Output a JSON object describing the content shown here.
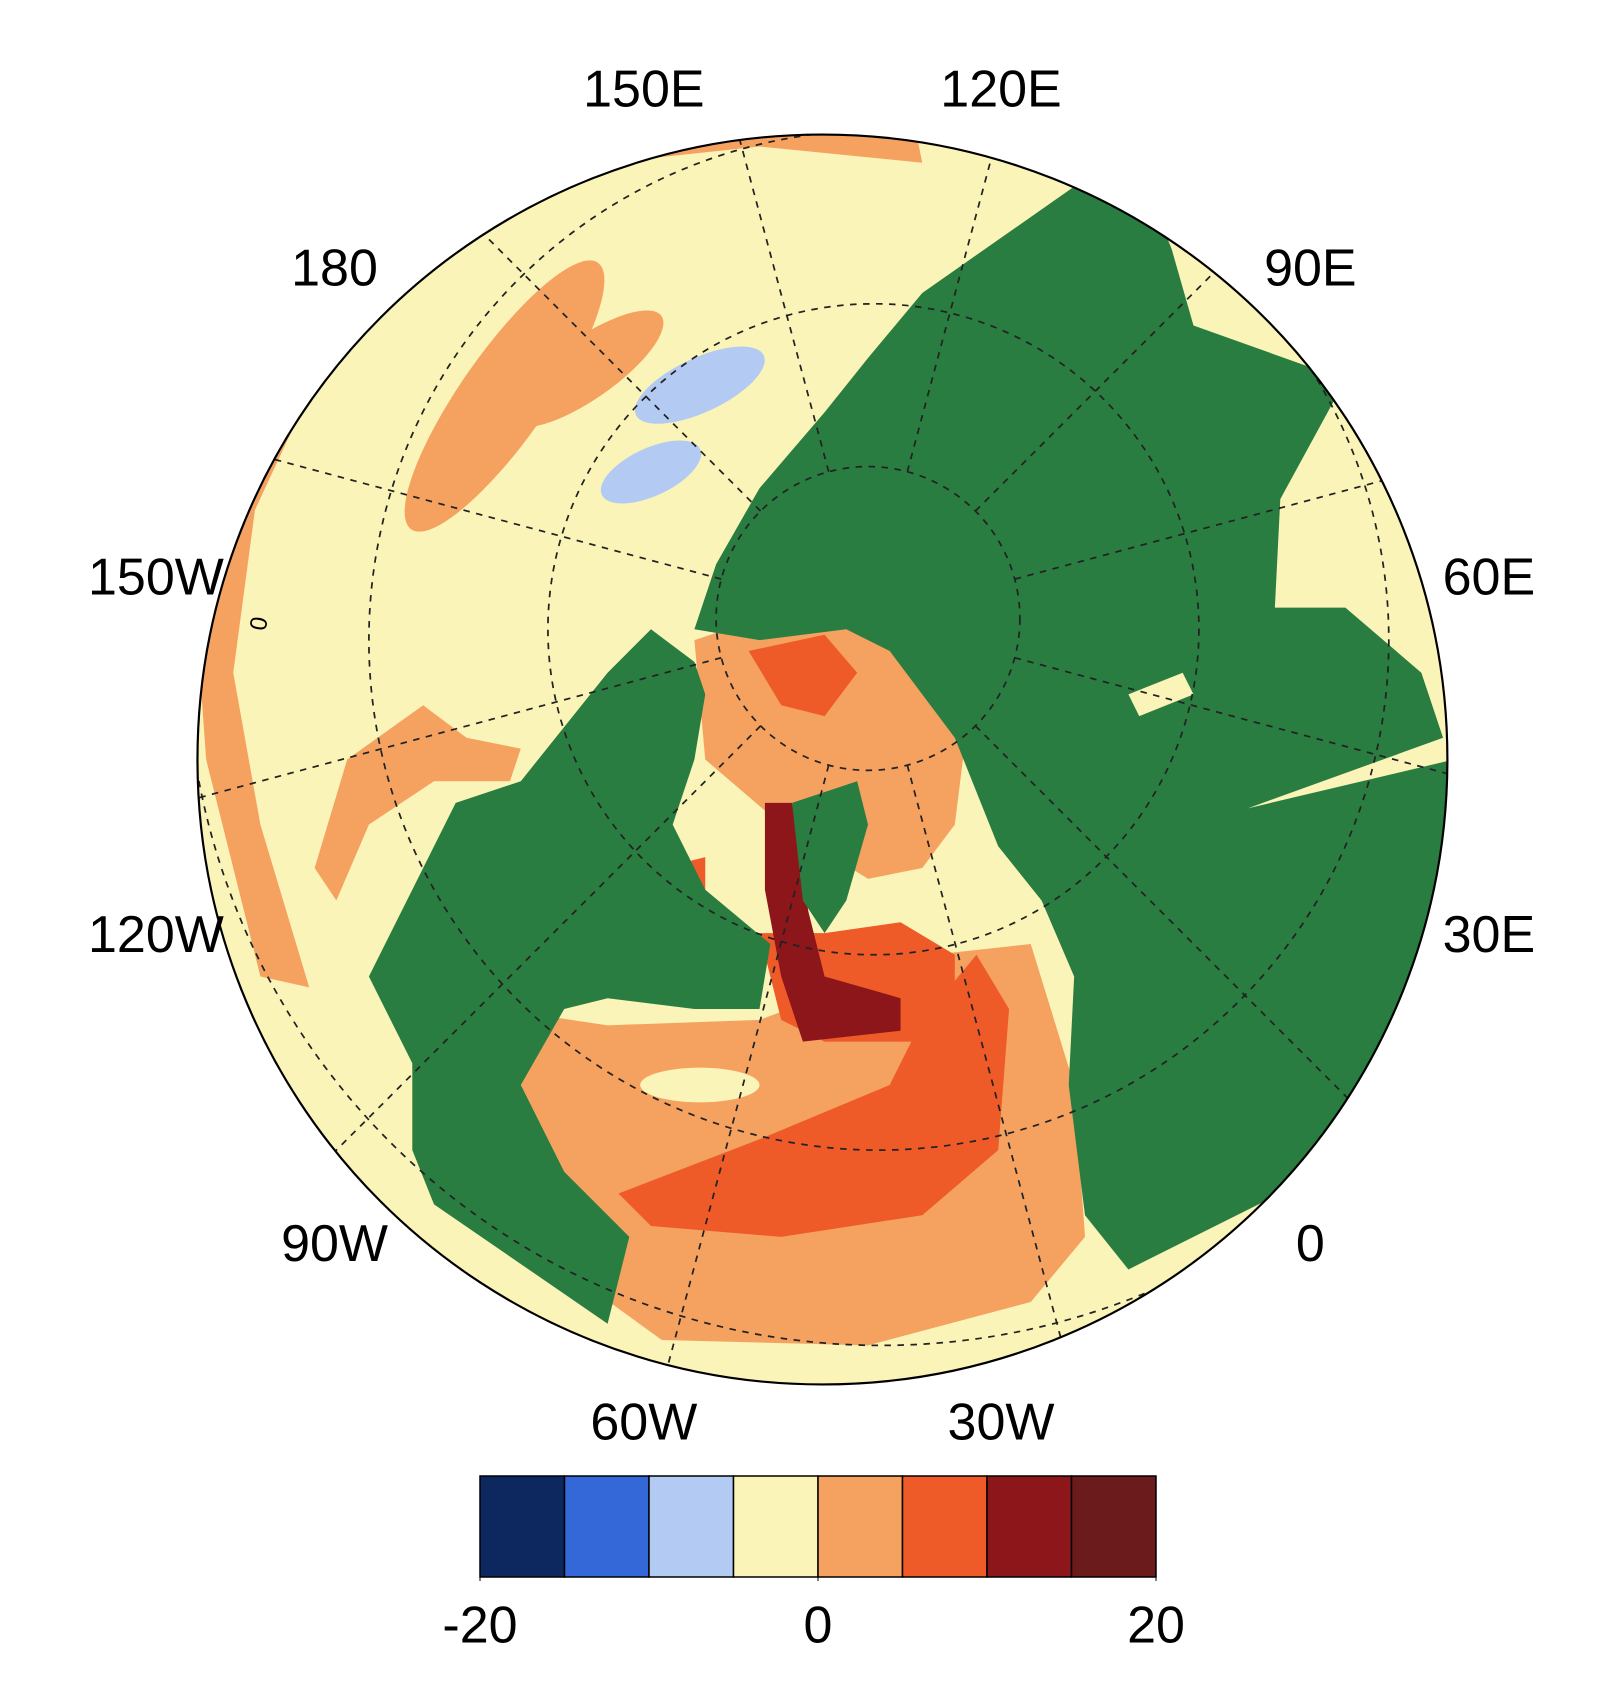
{
  "map": {
    "longitude_labels": [
      "0",
      "30E",
      "60E",
      "90E",
      "120E",
      "150E",
      "180",
      "150W",
      "120W",
      "90W",
      "60W",
      "30W"
    ],
    "contour_label": "0",
    "colorbar": {
      "levels": [
        -20,
        -15,
        -10,
        -5,
        0,
        5,
        10,
        15,
        20
      ],
      "colors": [
        "#0d275f",
        "#3467d8",
        "#b3cbf2",
        "#fbf4b9",
        "#f5a261",
        "#ef5a29",
        "#8c161a",
        "#6b1b1b"
      ],
      "ticks": [
        -20,
        0,
        20
      ]
    }
  }
}
